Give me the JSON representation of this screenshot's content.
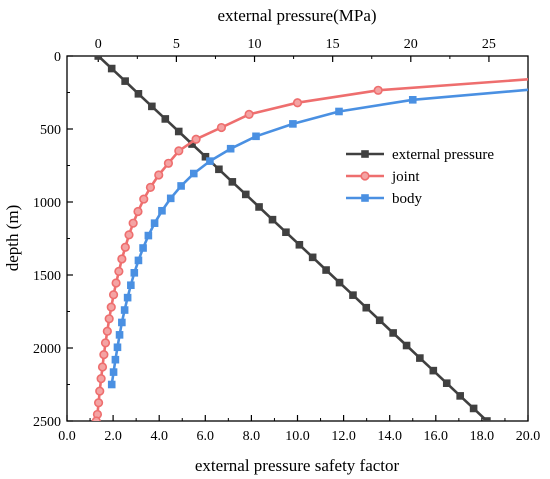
{
  "chart_data": {
    "type": "line",
    "title": "",
    "top_axis": {
      "label": "external pressure(MPa)",
      "range": [
        -2,
        27.5
      ],
      "ticks": [
        0,
        5,
        10,
        15,
        20,
        25
      ]
    },
    "bottom_axis": {
      "label": "external pressure safety factor",
      "range": [
        0,
        20
      ],
      "ticks": [
        0,
        2,
        4,
        6,
        8,
        10,
        12,
        14,
        16,
        18,
        20
      ],
      "tick_labels": [
        "0.0",
        "2.0",
        "4.0",
        "6.0",
        "8.0",
        "10.0",
        "12.0",
        "14.0",
        "16.0",
        "18.0",
        "20.0"
      ]
    },
    "left_axis": {
      "label": "depth (m)",
      "range": [
        0,
        2500
      ],
      "inverted": true,
      "ticks": [
        0,
        500,
        1000,
        1500,
        2000,
        2500
      ]
    },
    "grid": false,
    "legend": {
      "position": "right-middle"
    },
    "series": [
      {
        "name": "external pressure",
        "x_axis": "top",
        "color": "#404040",
        "marker": "square",
        "x": [
          0.0,
          0.86,
          1.72,
          2.57,
          3.43,
          4.29,
          5.15,
          6.0,
          6.86,
          7.72,
          8.58,
          9.44,
          10.29,
          11.15,
          12.01,
          12.87,
          13.72,
          14.58,
          15.44,
          16.3,
          17.15,
          18.01,
          18.87,
          19.73,
          20.58,
          21.44,
          22.3,
          23.16,
          24.02,
          24.87
        ],
        "y": [
          0,
          86,
          172,
          259,
          345,
          431,
          517,
          603,
          690,
          776,
          862,
          948,
          1034,
          1121,
          1207,
          1293,
          1379,
          1466,
          1552,
          1638,
          1724,
          1810,
          1897,
          1983,
          2069,
          2155,
          2241,
          2328,
          2414,
          2500
        ]
      },
      {
        "name": "joint",
        "x_axis": "bottom",
        "color": "#ee6e6e",
        "marker": "circle",
        "x": [
          13.5,
          10.0,
          7.9,
          6.7,
          5.6,
          4.85,
          4.4,
          3.98,
          3.62,
          3.33,
          3.08,
          2.87,
          2.69,
          2.53,
          2.38,
          2.25,
          2.13,
          2.02,
          1.92,
          1.83,
          1.75,
          1.67,
          1.6,
          1.54,
          1.48,
          1.42,
          1.37,
          1.32,
          1.27
        ],
        "y": [
          235,
          320,
          400,
          490,
          570,
          650,
          735,
          815,
          900,
          980,
          1065,
          1145,
          1225,
          1310,
          1390,
          1475,
          1555,
          1635,
          1720,
          1800,
          1885,
          1965,
          2045,
          2130,
          2210,
          2295,
          2375,
          2455,
          2500
        ]
      },
      {
        "name": "body",
        "x_axis": "bottom",
        "color": "#4a90e2",
        "marker": "square",
        "x": [
          15.0,
          11.8,
          9.8,
          8.2,
          7.1,
          6.2,
          5.5,
          4.95,
          4.5,
          4.12,
          3.8,
          3.53,
          3.3,
          3.1,
          2.92,
          2.77,
          2.63,
          2.5,
          2.38,
          2.28,
          2.19,
          2.1,
          2.02,
          1.94
        ],
        "y": [
          300,
          380,
          465,
          550,
          635,
          720,
          805,
          890,
          975,
          1060,
          1145,
          1230,
          1315,
          1400,
          1485,
          1570,
          1655,
          1740,
          1825,
          1910,
          1995,
          2080,
          2165,
          2250
        ]
      }
    ]
  }
}
